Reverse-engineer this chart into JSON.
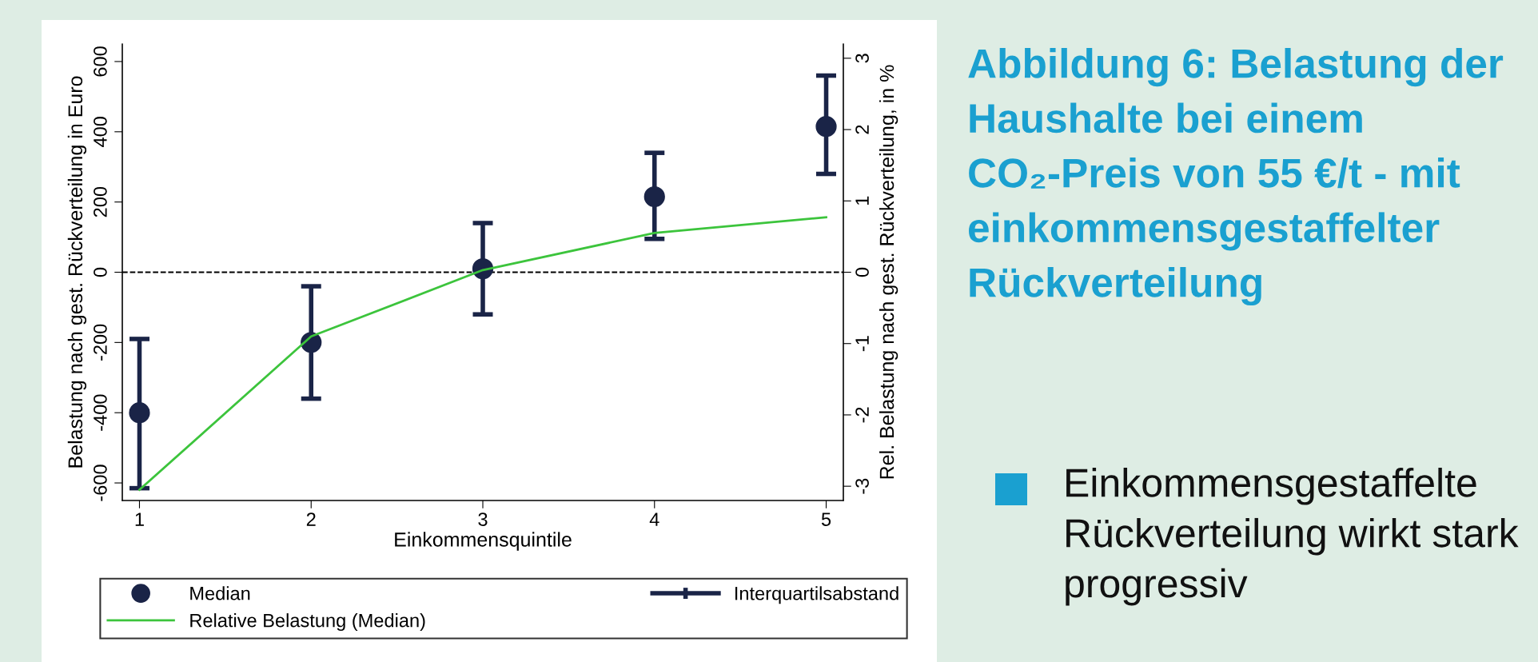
{
  "chart_data": {
    "type": "scatter",
    "title": "Abbildung 6: Belastung der Haushalte bei einem CO₂-Preis von 55 €/t - mit einkommensgestaffelter Rückverteilung",
    "xlabel": "Einkommensquintile",
    "ylabel": "Belastung nach gest. Rückverteilung in Euro",
    "y2label": "Rel. Belastung nach gest. Rückverteilung, in %",
    "x": [
      1,
      2,
      3,
      4,
      5
    ],
    "series": [
      {
        "name": "Median",
        "color": "#1a2447",
        "marker": "circle",
        "values": [
          -400,
          -200,
          10,
          215,
          415
        ],
        "errors": [
          [
            -615,
            -190
          ],
          [
            -360,
            -40
          ],
          [
            -120,
            140
          ],
          [
            95,
            340
          ],
          [
            280,
            560
          ]
        ]
      },
      {
        "name": "Relative Belastung (Median)",
        "type": "line",
        "marker": "none",
        "axis": "y2",
        "color": "#3cc43c",
        "values": [
          -3.05,
          -0.9,
          0.03,
          0.55,
          0.77
        ]
      }
    ],
    "xlim": [
      0.9,
      5.1
    ],
    "xticks": [
      1,
      2,
      3,
      4,
      5
    ],
    "ylim": [
      -650,
      650
    ],
    "yticks": [
      -600,
      -400,
      -200,
      0,
      200,
      400,
      600
    ],
    "y2lim": [
      -3.2,
      3.2
    ],
    "y2ticks": [
      -3,
      -2,
      -1,
      0,
      1,
      2,
      3
    ],
    "ref_lines": [
      {
        "axis": "y",
        "value": 0,
        "color": "#000000",
        "line_style": "dashed"
      }
    ],
    "legend": "bottom",
    "grid": false,
    "annotations": [
      "Interquartilsabstand",
      "Einkommensgestaffelte Rückverteilung wirkt stark progressiv"
    ]
  }
}
